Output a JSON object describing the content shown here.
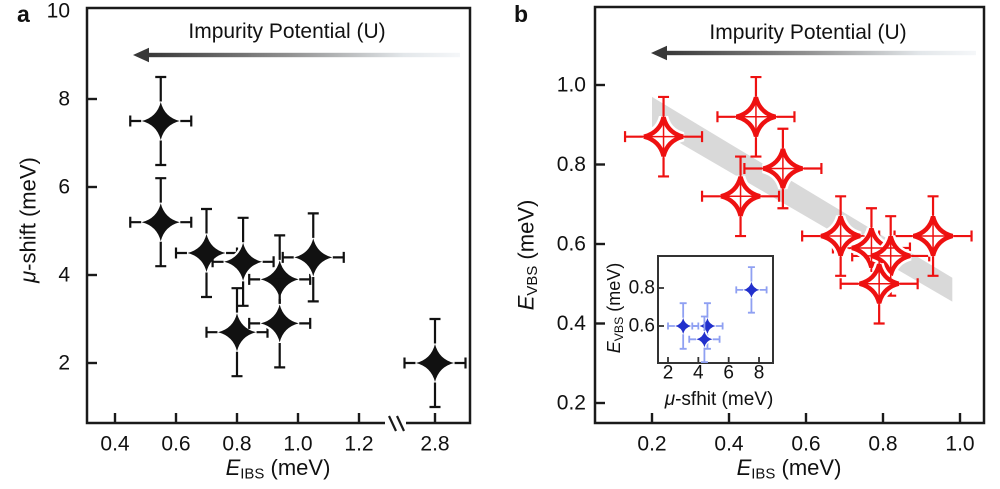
{
  "chart_data": [
    {
      "id": "a",
      "type": "scatter",
      "panel_label": "a",
      "arrow_caption": "Impurity Potential (U)",
      "xlabel": {
        "sym": "E",
        "sub": "IBS",
        "rest": " (meV)"
      },
      "ylabel": {
        "sym": "μ",
        "sub": "",
        "rest": "-shift (meV)"
      },
      "x_ticks": [
        0.4,
        0.6,
        0.8,
        1.0,
        1.2,
        2.8
      ],
      "x_tick_labels": [
        "0.4",
        "0.6",
        "0.8",
        "1.0",
        "1.2",
        "2.8"
      ],
      "y_ticks": [
        2,
        4,
        6,
        8,
        10
      ],
      "y_tick_labels": [
        "2",
        "4",
        "6",
        "8",
        "10"
      ],
      "axis_break_between": [
        1.2,
        2.8
      ],
      "xlim_left_segment": [
        0.31,
        1.3
      ],
      "xlim_right_segment": [
        2.68,
        2.92
      ],
      "ylim": [
        0.6,
        10.1
      ],
      "grid": false,
      "marker": "four-pointed-star-filled",
      "marker_color": "#111111",
      "error_color": "#111111",
      "xerr": 0.1,
      "yerr": 1.0,
      "points": [
        {
          "x": 0.55,
          "y": 7.5
        },
        {
          "x": 0.55,
          "y": 5.2
        },
        {
          "x": 0.7,
          "y": 4.5
        },
        {
          "x": 0.82,
          "y": 4.3
        },
        {
          "x": 0.94,
          "y": 3.9
        },
        {
          "x": 1.05,
          "y": 4.4
        },
        {
          "x": 0.8,
          "y": 2.7
        },
        {
          "x": 0.94,
          "y": 2.9
        },
        {
          "x": 2.8,
          "y": 2.0
        }
      ]
    },
    {
      "id": "b",
      "type": "scatter",
      "panel_label": "b",
      "arrow_caption": "Impurity Potential (U)",
      "xlabel": {
        "sym": "E",
        "sub": "IBS",
        "rest": " (meV)"
      },
      "ylabel": {
        "sym": "E",
        "sub": "VBS",
        "rest": " (meV)"
      },
      "x_ticks": [
        0.2,
        0.4,
        0.6,
        0.8,
        1.0
      ],
      "x_tick_labels": [
        "0.2",
        "0.4",
        "0.6",
        "0.8",
        "1.0"
      ],
      "y_ticks": [
        0.2,
        0.4,
        0.6,
        0.8,
        1.0
      ],
      "y_tick_labels": [
        "0.2",
        "0.4",
        "0.6",
        "0.8",
        "1.0"
      ],
      "xlim": [
        0.05,
        1.06
      ],
      "ylim": [
        0.16,
        1.16
      ],
      "grid": false,
      "marker": "four-pointed-star-open",
      "marker_color": "#ee1111",
      "error_color": "#ee1111",
      "xerr": 0.1,
      "yerr": 0.1,
      "trend_band": {
        "color": "#d9d9d9",
        "x_start": 0.2,
        "x_end": 0.98,
        "y_top_start": 0.97,
        "y_top_end": 0.515,
        "y_bottom_start": 0.895,
        "y_bottom_end": 0.455
      },
      "points": [
        {
          "x": 0.23,
          "y": 0.87
        },
        {
          "x": 0.47,
          "y": 0.92
        },
        {
          "x": 0.54,
          "y": 0.79
        },
        {
          "x": 0.43,
          "y": 0.72
        },
        {
          "x": 0.69,
          "y": 0.62
        },
        {
          "x": 0.77,
          "y": 0.59
        },
        {
          "x": 0.82,
          "y": 0.57
        },
        {
          "x": 0.79,
          "y": 0.5
        },
        {
          "x": 0.93,
          "y": 0.62
        }
      ],
      "inset": {
        "type": "scatter",
        "xlabel": {
          "sym": "μ",
          "sub": "",
          "rest": "-sfhit (meV)"
        },
        "ylabel": {
          "sym": "E",
          "sub": "VBS",
          "rest": " (meV)"
        },
        "x_ticks": [
          2,
          4,
          6,
          8
        ],
        "x_tick_labels": [
          "2",
          "4",
          "6",
          "8"
        ],
        "y_ticks": [
          0.6,
          0.8
        ],
        "y_tick_labels": [
          "0.6",
          "0.8"
        ],
        "xlim": [
          1.3,
          8.9
        ],
        "ylim": [
          0.39,
          0.96
        ],
        "marker": "four-pointed-star-filled",
        "marker_color": "#2230cc",
        "error_color": "#8fa0f2",
        "xerr": 1.0,
        "yerr": 0.12,
        "points": [
          {
            "x": 3.0,
            "y": 0.6
          },
          {
            "x": 4.6,
            "y": 0.6
          },
          {
            "x": 4.4,
            "y": 0.53
          },
          {
            "x": 7.5,
            "y": 0.79
          }
        ]
      }
    }
  ],
  "colors": {
    "frame": "#1a1a1a",
    "arrow_dark": "#383838",
    "arrow_light": "#f5f7f9",
    "panel_a_marker": "#111111",
    "panel_b_marker": "#ee1111",
    "band": "#d9d9d9",
    "inset_marker": "#2230cc",
    "inset_error": "#8fa0f2"
  }
}
